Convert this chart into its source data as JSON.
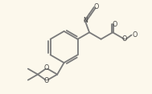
{
  "bg_color": "#fcf8ec",
  "line_color": "#7a7a7a",
  "line_width": 1.3,
  "figsize": [
    1.89,
    1.17
  ],
  "dpi": 100,
  "xlim": [
    0,
    10
  ],
  "ylim": [
    0,
    6.2
  ]
}
